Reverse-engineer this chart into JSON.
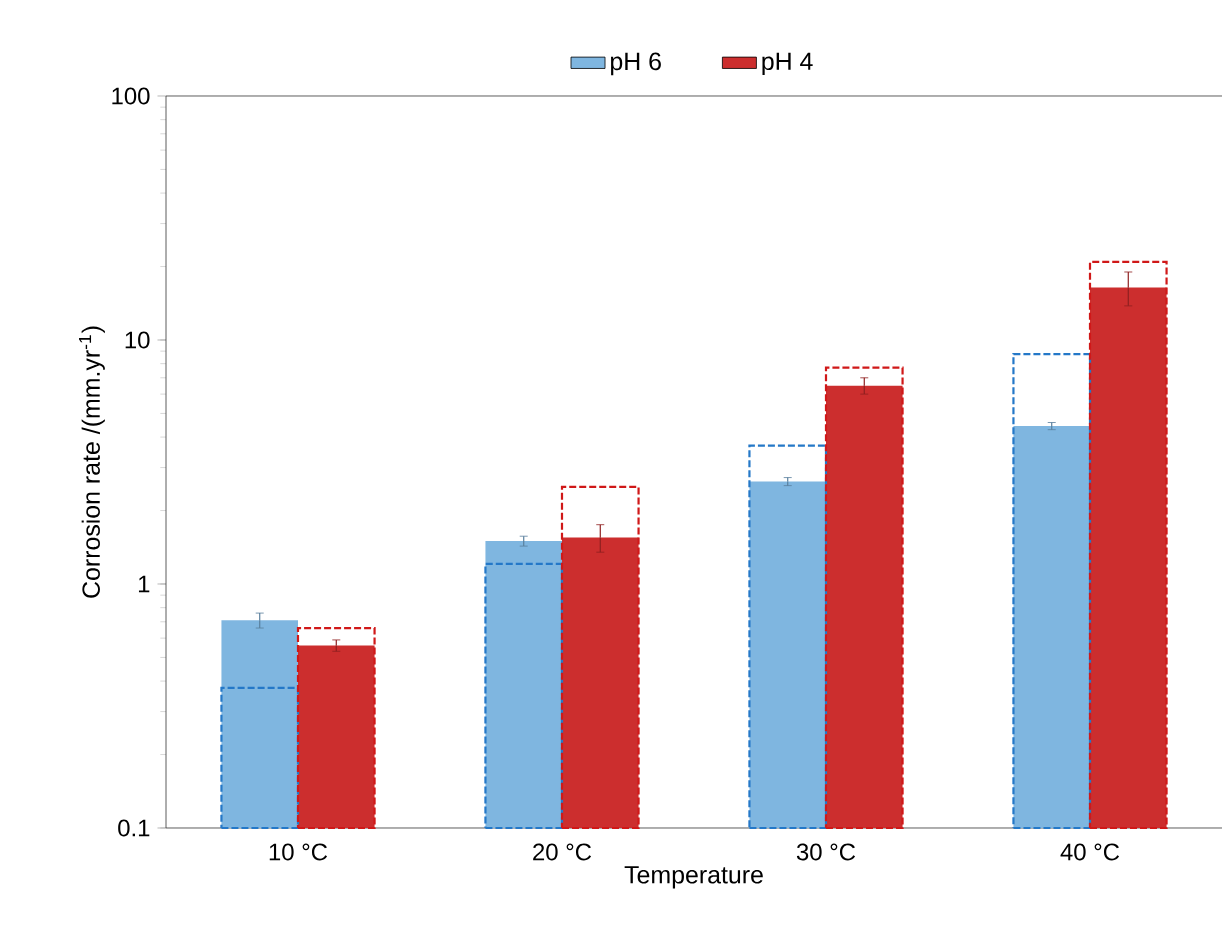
{
  "chart_data": {
    "type": "bar",
    "xlabel": "Temperature",
    "ylabel": "Corrosion rate /(mm.yr$^{-1}$)",
    "categories": [
      "10 °C",
      "20 °C",
      "30 °C",
      "40 °C"
    ],
    "series": [
      {
        "name": "pH 6",
        "color": "#7fb6e0",
        "values": [
          0.71,
          1.5,
          2.63,
          4.44
        ],
        "errors": [
          0.05,
          0.07,
          0.1,
          0.15
        ]
      },
      {
        "name": "pH 4",
        "color": "#cc2e2e",
        "values": [
          0.56,
          1.55,
          6.5,
          16.4
        ],
        "errors": [
          0.03,
          0.2,
          0.5,
          2.6
        ]
      },
      {
        "color": "#2478c8",
        "line_style": "dashed",
        "values": [
          0.375,
          1.21,
          3.69,
          8.75
        ]
      },
      {
        "color": "#d01818",
        "line_style": "dashed",
        "values": [
          0.66,
          2.5,
          7.7,
          20.9
        ]
      }
    ],
    "log": "y",
    "ylim": [
      0.1,
      100
    ],
    "yticks": [
      0.1,
      1,
      10,
      100
    ],
    "legend": "top"
  }
}
